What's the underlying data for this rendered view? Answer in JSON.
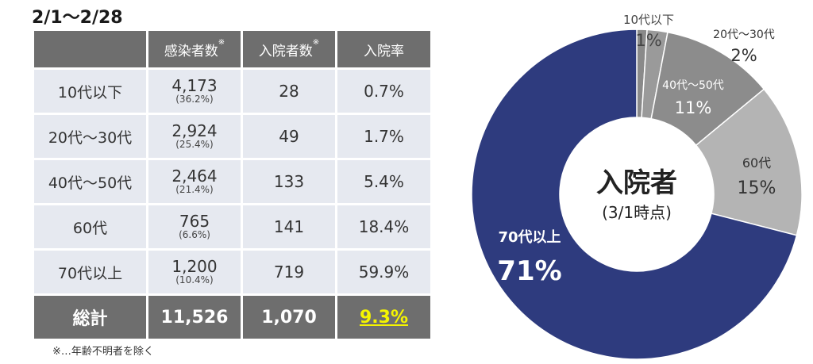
{
  "period": "2/1〜2/28",
  "table": {
    "headers": [
      "",
      "感染者数",
      "入院者数",
      "入院率"
    ],
    "header_marks": [
      "",
      "※",
      "※",
      ""
    ],
    "rows": [
      {
        "age": "10代以下",
        "infected": "4,173",
        "infected_pct": "(36.2%)",
        "hospitalized": "28",
        "rate": "0.7%"
      },
      {
        "age": "20代〜30代",
        "infected": "2,924",
        "infected_pct": "(25.4%)",
        "hospitalized": "49",
        "rate": "1.7%"
      },
      {
        "age": "40代〜50代",
        "infected": "2,464",
        "infected_pct": "(21.4%)",
        "hospitalized": "133",
        "rate": "5.4%"
      },
      {
        "age": "60代",
        "infected": "765",
        "infected_pct": "(6.6%)",
        "hospitalized": "141",
        "rate": "18.4%"
      },
      {
        "age": "70代以上",
        "infected": "1,200",
        "infected_pct": "(10.4%)",
        "hospitalized": "719",
        "rate": "59.9%"
      }
    ],
    "total": {
      "label": "総計",
      "infected": "11,526",
      "hospitalized": "1,070",
      "rate": "9.3%"
    }
  },
  "footnote": "※…年齢不明者を除く",
  "colors": {
    "header_bg": "#6e6e6e",
    "row_bg": "#e6e9f0",
    "total_rate": "#f5f500"
  },
  "chart_data": {
    "type": "pie",
    "title": "入院者",
    "subtitle": "(3/1時点)",
    "donut": true,
    "labels": [
      "10代以下",
      "20代〜30代",
      "40代〜50代",
      "60代",
      "70代以上"
    ],
    "value_labels": [
      "1%",
      "2%",
      "11%",
      "15%",
      "71%"
    ],
    "values": [
      1,
      2,
      11,
      15,
      71
    ],
    "colors": [
      "#8a8a8a",
      "#9a9a9a",
      "#8c8c8c",
      "#b4b4b4",
      "#2e3b7e"
    ]
  }
}
